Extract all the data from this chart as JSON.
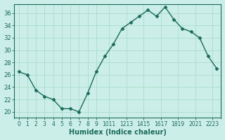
{
  "x": [
    0,
    1,
    2,
    3,
    4,
    5,
    6,
    7,
    8,
    9,
    10,
    11,
    12,
    13,
    14,
    15,
    16,
    17,
    18,
    19,
    20,
    21,
    22,
    23
  ],
  "y": [
    26.5,
    26.0,
    23.5,
    22.5,
    22.0,
    20.5,
    20.5,
    20.0,
    23.0,
    26.5,
    29.0,
    31.0,
    33.5,
    34.5,
    35.5,
    36.5,
    35.5,
    37.0,
    35.0,
    33.5,
    33.0,
    32.0,
    29.0,
    27.0
  ],
  "line_color": "#1a6b5a",
  "marker": "D",
  "markersize": 2.5,
  "linewidth": 1.0,
  "bg_color": "#cceee8",
  "grid_color": "#aaddcc",
  "xlabel": "Humidex (Indice chaleur)",
  "xlabel_fontsize": 7,
  "xlabel_fontweight": "bold",
  "yticks": [
    20,
    22,
    24,
    26,
    28,
    30,
    32,
    34,
    36
  ],
  "xtick_labels": [
    "0",
    "1",
    "2",
    "3",
    "4",
    "5",
    "6",
    "7",
    "8",
    "9",
    "1011",
    "1213",
    "1415",
    "1617",
    "1819",
    "2021",
    "2223"
  ],
  "xtick_positions": [
    0,
    1,
    2,
    3,
    4,
    5,
    6,
    7,
    8,
    9,
    10.5,
    12.5,
    14.5,
    16.5,
    18.5,
    20.5,
    22.5
  ],
  "ylim": [
    19.0,
    37.5
  ],
  "xlim": [
    -0.5,
    23.5
  ],
  "ytick_fontsize": 6,
  "xtick_fontsize": 5.5,
  "tick_color": "#1a6b5a",
  "spine_color": "#1a6b5a"
}
